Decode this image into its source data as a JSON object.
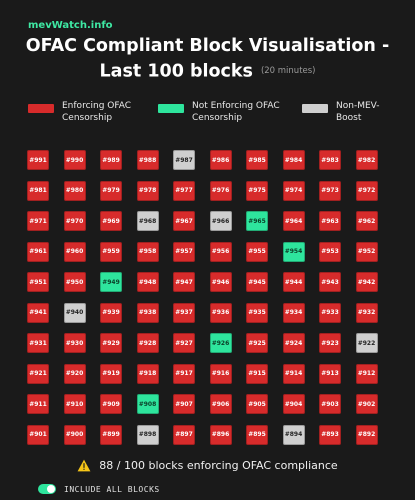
{
  "brand": "mevWatch.info",
  "title_line1": "OFAC Compliant Block Visualisation -",
  "title_line2": "Last 100 blocks",
  "title_sub": "(20 minutes)",
  "colors": {
    "enforcing": "#d72b2b",
    "not_enforcing": "#2ee59d",
    "non_mev": "#cfcfcf"
  },
  "legend": [
    {
      "key": "enforcing",
      "label_1": "Enforcing OFAC",
      "label_2": "Censorship"
    },
    {
      "key": "not_enforcing",
      "label_1": "Not Enforcing OFAC",
      "label_2": "Censorship"
    },
    {
      "key": "non_mev",
      "label_1": "Non-MEV-",
      "label_2": "Boost"
    }
  ],
  "blocks": [
    {
      "label": "#991",
      "status": "enforcing"
    },
    {
      "label": "#990",
      "status": "enforcing"
    },
    {
      "label": "#989",
      "status": "enforcing"
    },
    {
      "label": "#988",
      "status": "enforcing"
    },
    {
      "label": "#987",
      "status": "non_mev"
    },
    {
      "label": "#986",
      "status": "enforcing"
    },
    {
      "label": "#985",
      "status": "enforcing"
    },
    {
      "label": "#984",
      "status": "enforcing"
    },
    {
      "label": "#983",
      "status": "enforcing"
    },
    {
      "label": "#982",
      "status": "enforcing"
    },
    {
      "label": "#981",
      "status": "enforcing"
    },
    {
      "label": "#980",
      "status": "enforcing"
    },
    {
      "label": "#979",
      "status": "enforcing"
    },
    {
      "label": "#978",
      "status": "enforcing"
    },
    {
      "label": "#977",
      "status": "enforcing"
    },
    {
      "label": "#976",
      "status": "enforcing"
    },
    {
      "label": "#975",
      "status": "enforcing"
    },
    {
      "label": "#974",
      "status": "enforcing"
    },
    {
      "label": "#973",
      "status": "enforcing"
    },
    {
      "label": "#972",
      "status": "enforcing"
    },
    {
      "label": "#971",
      "status": "enforcing"
    },
    {
      "label": "#970",
      "status": "enforcing"
    },
    {
      "label": "#969",
      "status": "enforcing"
    },
    {
      "label": "#968",
      "status": "non_mev"
    },
    {
      "label": "#967",
      "status": "enforcing"
    },
    {
      "label": "#966",
      "status": "non_mev"
    },
    {
      "label": "#965",
      "status": "not_enforcing"
    },
    {
      "label": "#964",
      "status": "enforcing"
    },
    {
      "label": "#963",
      "status": "enforcing"
    },
    {
      "label": "#962",
      "status": "enforcing"
    },
    {
      "label": "#961",
      "status": "enforcing"
    },
    {
      "label": "#960",
      "status": "enforcing"
    },
    {
      "label": "#959",
      "status": "enforcing"
    },
    {
      "label": "#958",
      "status": "enforcing"
    },
    {
      "label": "#957",
      "status": "enforcing"
    },
    {
      "label": "#956",
      "status": "enforcing"
    },
    {
      "label": "#955",
      "status": "enforcing"
    },
    {
      "label": "#954",
      "status": "not_enforcing"
    },
    {
      "label": "#953",
      "status": "enforcing"
    },
    {
      "label": "#952",
      "status": "enforcing"
    },
    {
      "label": "#951",
      "status": "enforcing"
    },
    {
      "label": "#950",
      "status": "enforcing"
    },
    {
      "label": "#949",
      "status": "not_enforcing"
    },
    {
      "label": "#948",
      "status": "enforcing"
    },
    {
      "label": "#947",
      "status": "enforcing"
    },
    {
      "label": "#946",
      "status": "enforcing"
    },
    {
      "label": "#945",
      "status": "enforcing"
    },
    {
      "label": "#944",
      "status": "enforcing"
    },
    {
      "label": "#943",
      "status": "enforcing"
    },
    {
      "label": "#942",
      "status": "enforcing"
    },
    {
      "label": "#941",
      "status": "enforcing"
    },
    {
      "label": "#940",
      "status": "non_mev"
    },
    {
      "label": "#939",
      "status": "enforcing"
    },
    {
      "label": "#938",
      "status": "enforcing"
    },
    {
      "label": "#937",
      "status": "enforcing"
    },
    {
      "label": "#936",
      "status": "enforcing"
    },
    {
      "label": "#935",
      "status": "enforcing"
    },
    {
      "label": "#934",
      "status": "enforcing"
    },
    {
      "label": "#933",
      "status": "enforcing"
    },
    {
      "label": "#932",
      "status": "enforcing"
    },
    {
      "label": "#931",
      "status": "enforcing"
    },
    {
      "label": "#930",
      "status": "enforcing"
    },
    {
      "label": "#929",
      "status": "enforcing"
    },
    {
      "label": "#928",
      "status": "enforcing"
    },
    {
      "label": "#927",
      "status": "enforcing"
    },
    {
      "label": "#926",
      "status": "not_enforcing"
    },
    {
      "label": "#925",
      "status": "enforcing"
    },
    {
      "label": "#924",
      "status": "enforcing"
    },
    {
      "label": "#923",
      "status": "enforcing"
    },
    {
      "label": "#922",
      "status": "non_mev"
    },
    {
      "label": "#921",
      "status": "enforcing"
    },
    {
      "label": "#920",
      "status": "enforcing"
    },
    {
      "label": "#919",
      "status": "enforcing"
    },
    {
      "label": "#918",
      "status": "enforcing"
    },
    {
      "label": "#917",
      "status": "enforcing"
    },
    {
      "label": "#916",
      "status": "enforcing"
    },
    {
      "label": "#915",
      "status": "enforcing"
    },
    {
      "label": "#914",
      "status": "enforcing"
    },
    {
      "label": "#913",
      "status": "enforcing"
    },
    {
      "label": "#912",
      "status": "enforcing"
    },
    {
      "label": "#911",
      "status": "enforcing"
    },
    {
      "label": "#910",
      "status": "enforcing"
    },
    {
      "label": "#909",
      "status": "enforcing"
    },
    {
      "label": "#908",
      "status": "not_enforcing"
    },
    {
      "label": "#907",
      "status": "enforcing"
    },
    {
      "label": "#906",
      "status": "enforcing"
    },
    {
      "label": "#905",
      "status": "enforcing"
    },
    {
      "label": "#904",
      "status": "enforcing"
    },
    {
      "label": "#903",
      "status": "enforcing"
    },
    {
      "label": "#902",
      "status": "enforcing"
    },
    {
      "label": "#901",
      "status": "enforcing"
    },
    {
      "label": "#900",
      "status": "enforcing"
    },
    {
      "label": "#899",
      "status": "enforcing"
    },
    {
      "label": "#898",
      "status": "non_mev"
    },
    {
      "label": "#897",
      "status": "enforcing"
    },
    {
      "label": "#896",
      "status": "enforcing"
    },
    {
      "label": "#895",
      "status": "enforcing"
    },
    {
      "label": "#894",
      "status": "non_mev"
    },
    {
      "label": "#893",
      "status": "enforcing"
    },
    {
      "label": "#892",
      "status": "enforcing"
    }
  ],
  "summary": "88 / 100 blocks enforcing OFAC compliance",
  "summary_icon": "warning-icon",
  "toggle": {
    "label": "INCLUDE ALL BLOCKS",
    "on": true,
    "color": "#2ee59d"
  }
}
